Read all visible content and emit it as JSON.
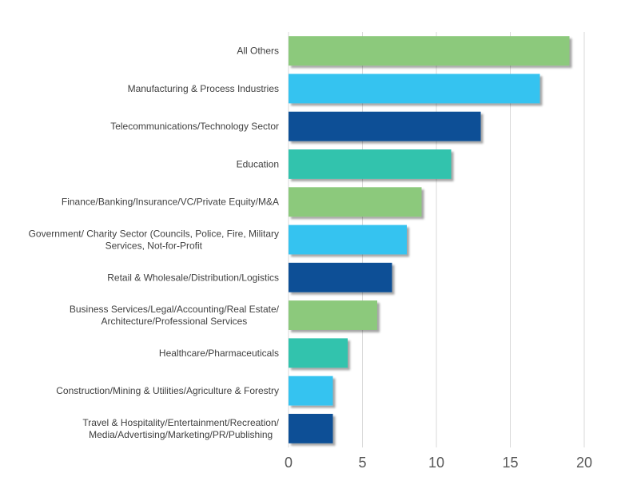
{
  "chart_data": {
    "type": "bar",
    "orientation": "horizontal",
    "categories": [
      [
        "All Others"
      ],
      [
        "Manufacturing & Process Industries"
      ],
      [
        "Telecommunications/Technology Sector"
      ],
      [
        "Education"
      ],
      [
        "Finance/Banking/Insurance/VC/Private Equity/M&A"
      ],
      [
        "Government/ Charity Sector (Councils, Police, Fire, Military",
        "Services, Not-for-Profit"
      ],
      [
        "Retail & Wholesale/Distribution/Logistics"
      ],
      [
        "Business Services/Legal/Accounting/Real Estate/",
        "Architecture/Professional Services"
      ],
      [
        "Healthcare/Pharmaceuticals"
      ],
      [
        "Construction/Mining & Utilities/Agriculture & Forestry"
      ],
      [
        "Travel & Hospitality/Entertainment/Recreation/",
        "Media/Advertising/Marketing/PR/Publishing"
      ]
    ],
    "values": [
      19,
      17,
      13,
      11,
      9,
      8,
      7,
      6,
      4,
      3,
      3
    ],
    "bar_colors": [
      "#8cc97b",
      "#36c3f0",
      "#0a5096",
      "#31c3ad",
      "#8cc97b",
      "#36c3f0",
      "#0a5096",
      "#8cc97b",
      "#31c3ad",
      "#36c3f0",
      "#0a5096"
    ],
    "xlim": [
      0,
      20
    ],
    "xticks": [
      0,
      5,
      10,
      15,
      20
    ],
    "grid": "vertical",
    "legend": "none",
    "title": "",
    "xlabel": "",
    "ylabel": ""
  }
}
